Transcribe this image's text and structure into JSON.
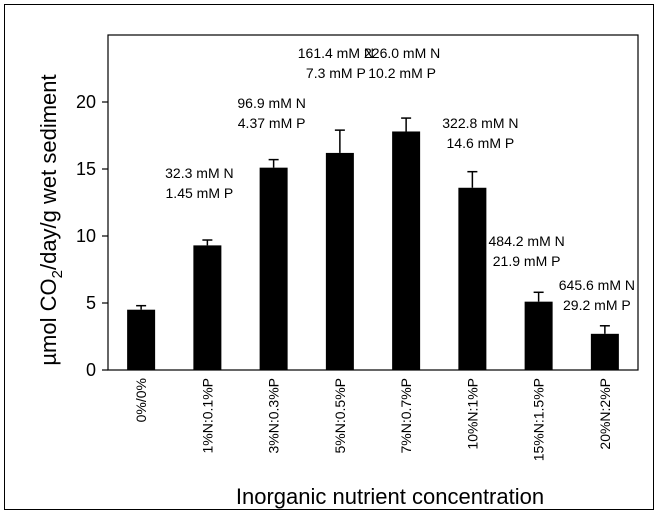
{
  "chart_data": {
    "type": "bar",
    "title": "",
    "xlabel": "Inorganic nutrient concentration",
    "ylabel": {
      "main": "µmol CO",
      "sub": "2",
      "rest": "/day/g wet sediment"
    },
    "ylim": [
      0,
      25
    ],
    "yticks": [
      0,
      5,
      10,
      15,
      20
    ],
    "grid": false,
    "legend": "none",
    "bar_color": "#000000",
    "categories": [
      "0%/0%",
      "1%N:0.1%P",
      "3%N:0.3%P",
      "5%N:0.5%P",
      "7%N:0.7%P",
      "10%N:1%P",
      "15%N:1.5%P",
      "20%N:2%P"
    ],
    "values": [
      4.5,
      9.3,
      15.1,
      16.2,
      17.8,
      13.6,
      5.1,
      2.7
    ],
    "errors": [
      0.3,
      0.4,
      0.6,
      1.7,
      1.0,
      1.2,
      0.7,
      0.6
    ],
    "annotations": [
      null,
      [
        "32.3 mM N",
        "1.45 mM P"
      ],
      [
        "96.9 mM N",
        "4.37 mM P"
      ],
      [
        "161.4 mM N",
        "7.3 mM P"
      ],
      [
        "226.0 mM N",
        "10.2 mM P"
      ],
      [
        "322.8 mM N",
        "14.6 mM P"
      ],
      [
        "484.2 mM N",
        "21.9 mM P"
      ],
      [
        "645.6 mM N",
        "29.2 mM P"
      ]
    ]
  }
}
